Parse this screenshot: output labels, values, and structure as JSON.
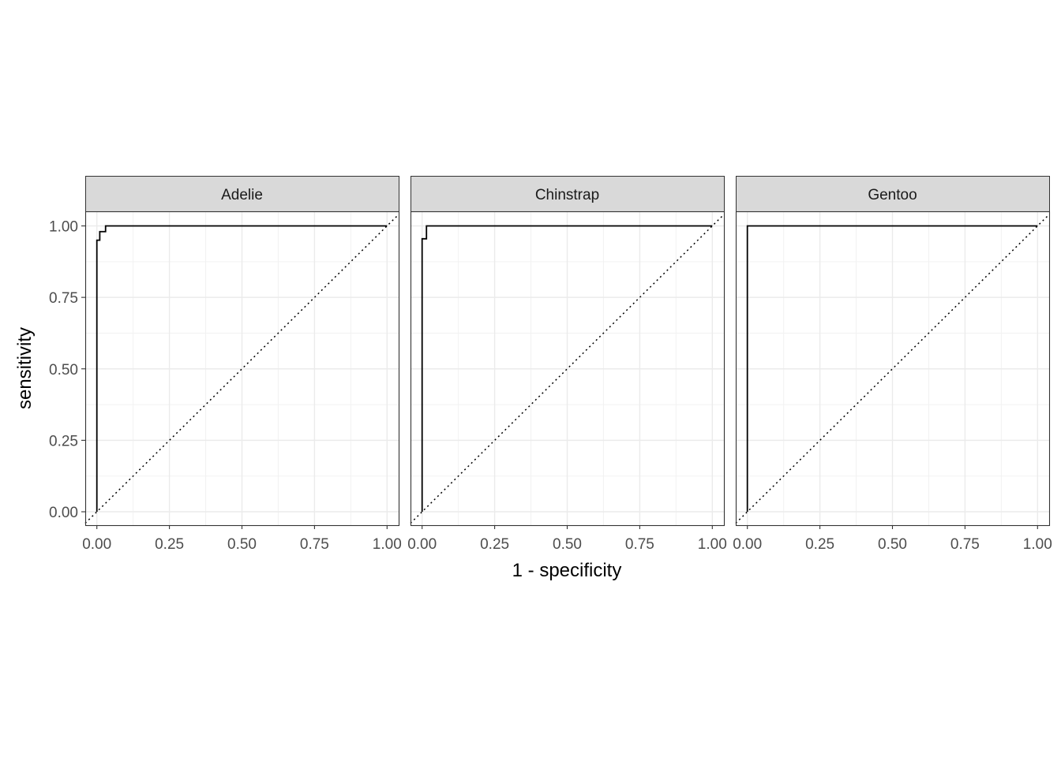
{
  "chart_data": {
    "type": "line",
    "facets": [
      "Adelie",
      "Chinstrap",
      "Gentoo"
    ],
    "xlabel": "1 - specificity",
    "ylabel": "sensitivity",
    "xlim": [
      0,
      1
    ],
    "ylim": [
      0,
      1
    ],
    "x_ticks": [
      "0.00",
      "0.25",
      "0.50",
      "0.75",
      "1.00"
    ],
    "y_ticks": [
      "0.00",
      "0.25",
      "0.50",
      "0.75",
      "1.00"
    ],
    "grid": true,
    "reference_line": "diagonal dotted y = x",
    "series": [
      {
        "name": "Adelie",
        "x": [
          0,
          0,
          0,
          0.01,
          0.01,
          0.03,
          0.03,
          1
        ],
        "y": [
          0,
          0.95,
          0.95,
          0.95,
          0.98,
          0.98,
          1,
          1
        ]
      },
      {
        "name": "Chinstrap",
        "x": [
          0,
          0,
          0.015,
          0.015,
          1
        ],
        "y": [
          0,
          0.955,
          0.955,
          1,
          1
        ]
      },
      {
        "name": "Gentoo",
        "x": [
          0,
          0,
          1
        ],
        "y": [
          0,
          1,
          1
        ]
      }
    ]
  }
}
